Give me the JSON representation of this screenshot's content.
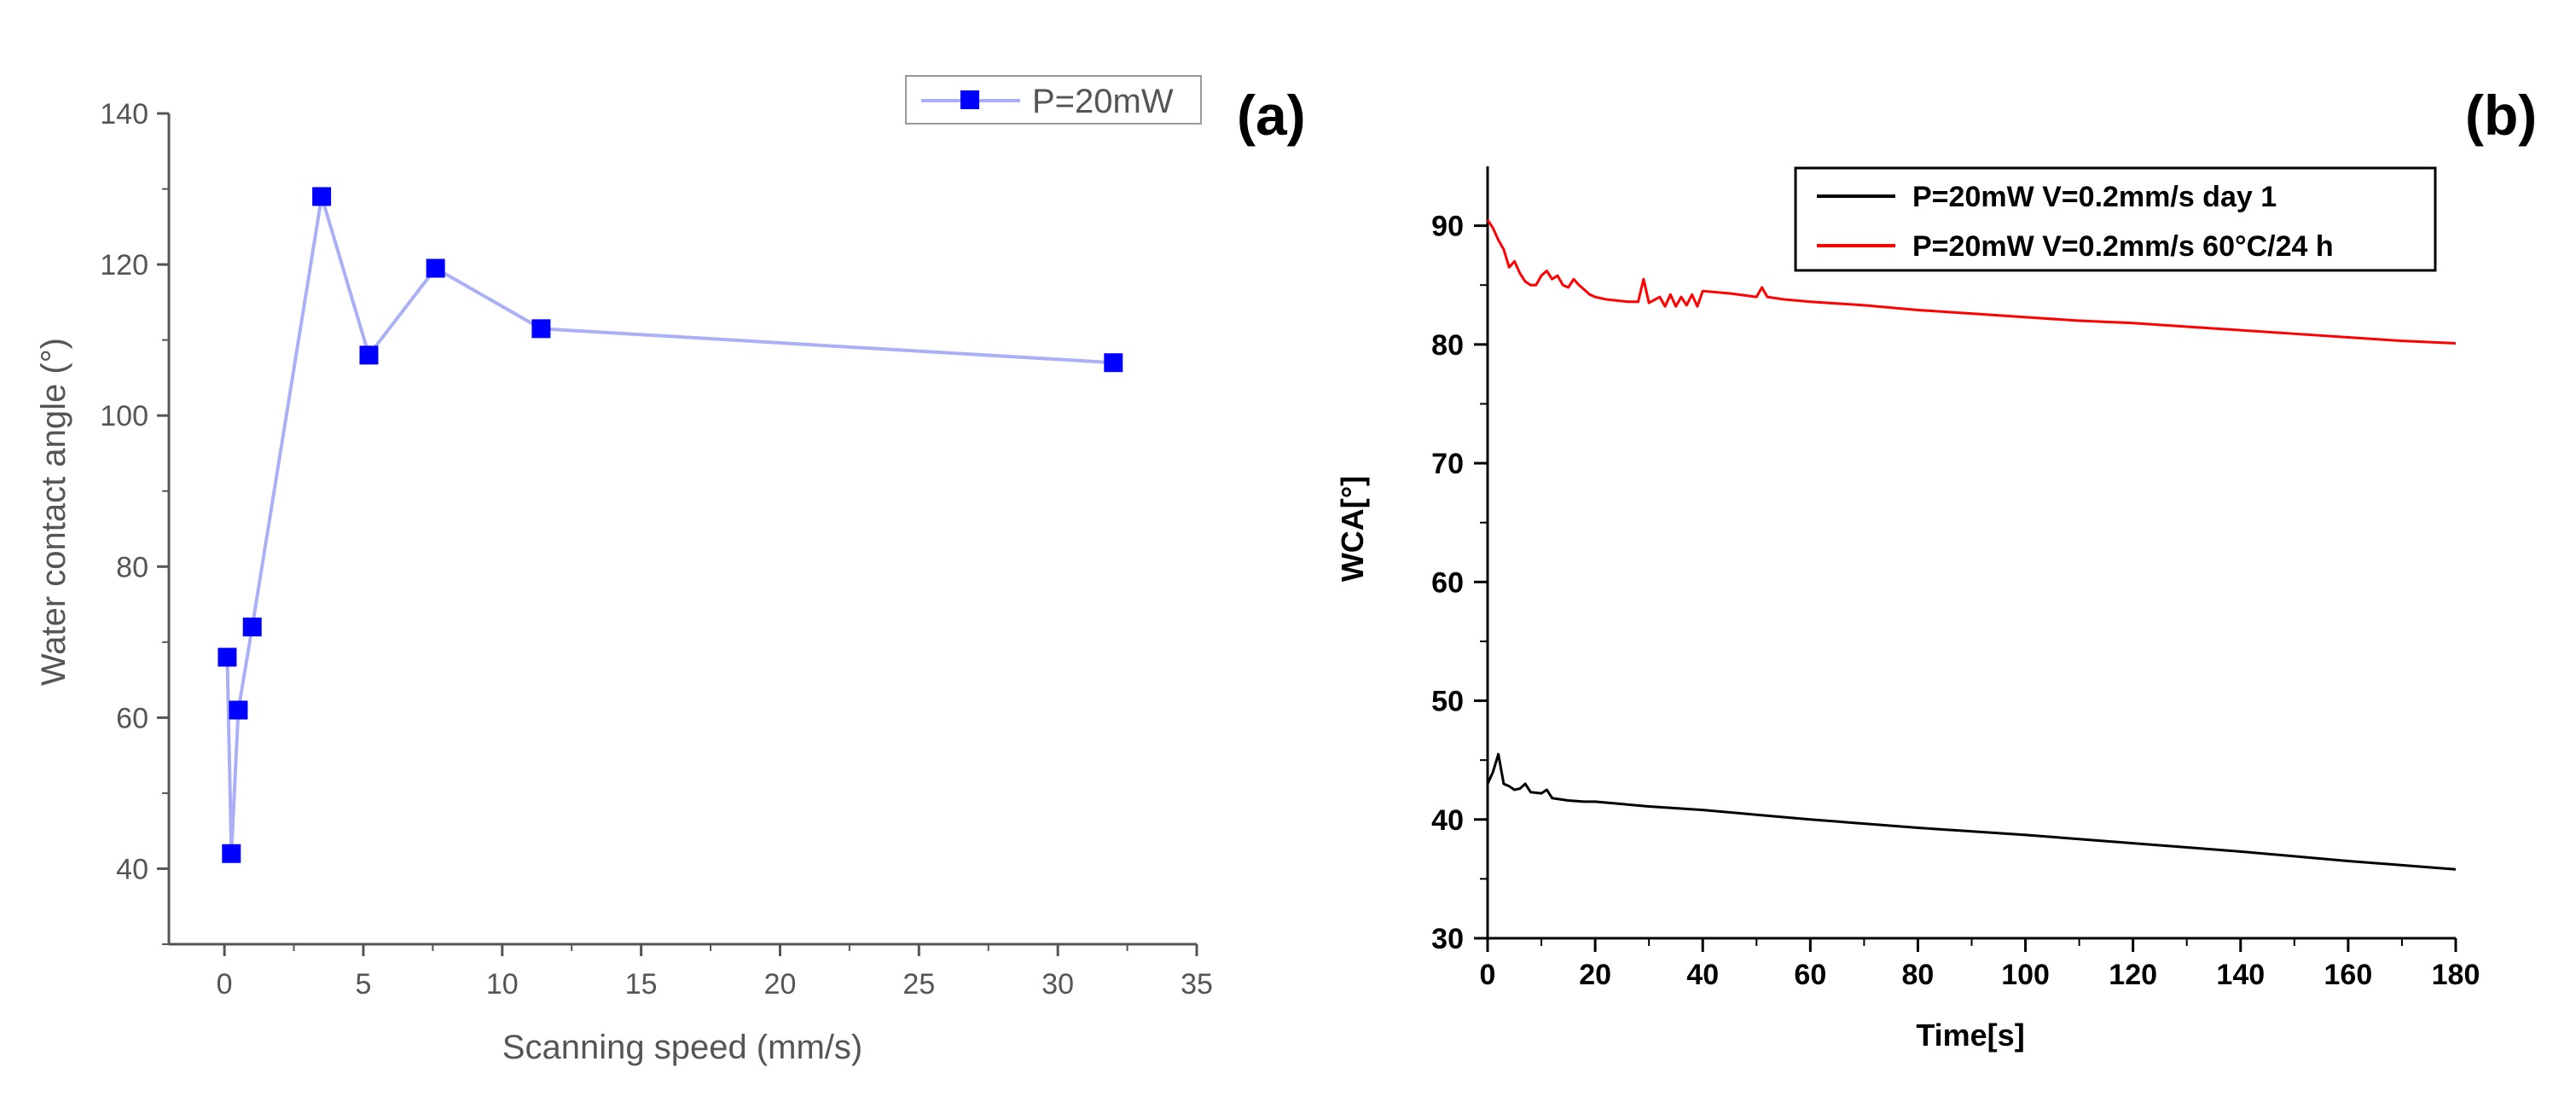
{
  "chart_data": [
    {
      "panel": "(a)",
      "type": "line",
      "marker": "square",
      "title": "",
      "xlabel": "Scanning speed (mm/s)",
      "ylabel": "Water contact angle (°)",
      "xlim": [
        -2,
        35
      ],
      "ylim": [
        30,
        140
      ],
      "xticks": [
        0,
        5,
        10,
        15,
        20,
        25,
        30,
        35
      ],
      "yticks": [
        40,
        60,
        80,
        100,
        120,
        140
      ],
      "legend_position": "top-right",
      "series": [
        {
          "name": "P=20mW",
          "color": "#0000ff",
          "line_color": "#a9b0f5",
          "x": [
            0.1,
            0.25,
            0.5,
            1.0,
            3.5,
            5.2,
            7.6,
            11.4,
            32.0
          ],
          "y": [
            68,
            42,
            61,
            72,
            129,
            108,
            119.5,
            111.5,
            107
          ]
        }
      ]
    },
    {
      "panel": "(b)",
      "type": "line",
      "title": "",
      "xlabel": "Time[s]",
      "ylabel": "WCA[°]",
      "xlim": [
        0,
        180
      ],
      "ylim": [
        30,
        95
      ],
      "xticks": [
        0,
        20,
        40,
        60,
        80,
        100,
        120,
        140,
        160,
        180
      ],
      "yticks": [
        30,
        40,
        50,
        60,
        70,
        80,
        90
      ],
      "legend_position": "top-right",
      "series": [
        {
          "name": "P=20mW V=0.2mm/s day 1",
          "color": "#000000",
          "x": [
            0,
            1,
            2,
            3,
            4,
            5,
            6,
            7,
            8,
            10,
            11,
            12,
            15,
            18,
            20,
            25,
            30,
            40,
            50,
            60,
            80,
            100,
            120,
            140,
            160,
            180
          ],
          "y": [
            43,
            44,
            45.5,
            43,
            42.8,
            42.5,
            42.6,
            43,
            42.3,
            42.2,
            42.5,
            41.8,
            41.6,
            41.5,
            41.5,
            41.3,
            41.1,
            40.8,
            40.4,
            40.0,
            39.3,
            38.7,
            38.0,
            37.3,
            36.5,
            35.8
          ]
        },
        {
          "name": "P=20mW V=0.2mm/s 60°C/24 h",
          "color": "#ff0000",
          "x": [
            0,
            1,
            2,
            3,
            4,
            5,
            6,
            7,
            8,
            9,
            10,
            11,
            12,
            13,
            14,
            15,
            16,
            17,
            18,
            19,
            20,
            22,
            24,
            26,
            28,
            29,
            30,
            32,
            33,
            34,
            35,
            36,
            37,
            38,
            39,
            40,
            45,
            50,
            51,
            52,
            55,
            60,
            70,
            80,
            90,
            100,
            110,
            120,
            130,
            140,
            150,
            160,
            170,
            180
          ],
          "y": [
            90.5,
            89.8,
            88.8,
            88,
            86.5,
            87,
            86,
            85.3,
            85,
            85,
            85.8,
            86.2,
            85.5,
            85.8,
            85,
            84.8,
            85.5,
            85,
            84.6,
            84.2,
            84,
            83.8,
            83.7,
            83.6,
            83.6,
            85.5,
            83.5,
            84,
            83.2,
            84.2,
            83.2,
            84,
            83.3,
            84.2,
            83.2,
            84.5,
            84.3,
            84,
            84.8,
            84,
            83.8,
            83.6,
            83.3,
            82.9,
            82.6,
            82.3,
            82,
            81.8,
            81.5,
            81.2,
            80.9,
            80.6,
            80.3,
            80.1
          ]
        }
      ]
    }
  ]
}
